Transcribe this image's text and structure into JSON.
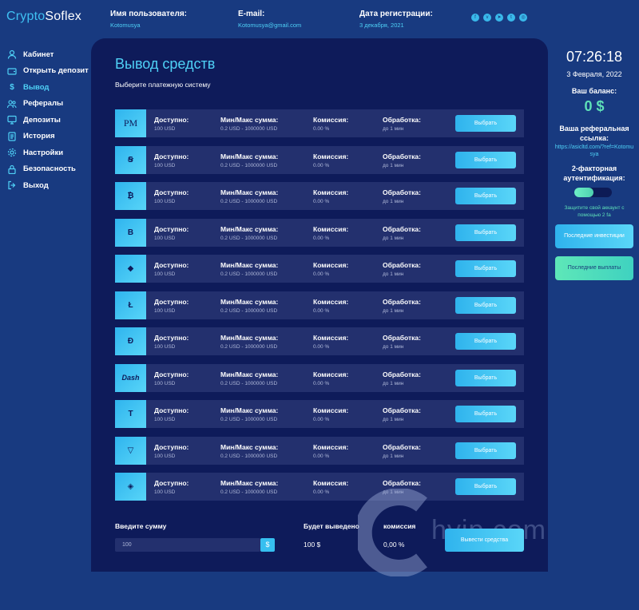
{
  "logo": {
    "part1": "Crypto",
    "part2": "Soflex"
  },
  "header": {
    "user": {
      "label": "Имя пользователя:",
      "value": "Kotomusya"
    },
    "email": {
      "label": "E-mail:",
      "value": "Kotomusya@gmail.com"
    },
    "reg": {
      "label": "Дата регистрации:",
      "value": "3 декабря, 2021"
    },
    "social_icons": [
      "facebook-icon",
      "vk-icon",
      "telegram-icon",
      "twitter-icon",
      "instagram-icon"
    ]
  },
  "nav": {
    "items": [
      {
        "label": "Кабинет",
        "icon": "user-icon"
      },
      {
        "label": "Открыть депозит",
        "icon": "wallet-icon"
      },
      {
        "label": "Вывод",
        "icon": "dollar-icon",
        "active": true
      },
      {
        "label": "Рефералы",
        "icon": "users-icon"
      },
      {
        "label": "Депозиты",
        "icon": "monitor-icon"
      },
      {
        "label": "История",
        "icon": "book-icon"
      },
      {
        "label": "Настройки",
        "icon": "gear-icon"
      },
      {
        "label": "Безопасность",
        "icon": "lock-icon"
      },
      {
        "label": "Выход",
        "icon": "logout-icon"
      }
    ]
  },
  "panel": {
    "title": "Вывод средств",
    "subtitle": "Выберите платежную систему",
    "col_labels": {
      "available": "Доступно:",
      "minmax": "Мин/Макс сумма:",
      "fee": "Комиссия:",
      "processing": "Обработка:"
    },
    "button_label": "Выбрать",
    "systems": [
      {
        "logo": "PM",
        "icon": "perfect-money-icon",
        "available": "100 USD",
        "minmax": "0.2 USD - 1000000 USD",
        "fee": "0.00 %",
        "processing": "до 1 мин"
      },
      {
        "logo": "Ꞩ",
        "icon": "payeer-icon",
        "available": "100 USD",
        "minmax": "0.2 USD - 1000000 USD",
        "fee": "0.00 %",
        "processing": "до 1 мин"
      },
      {
        "logo": "₿",
        "icon": "bitcoin-icon",
        "available": "100 USD",
        "minmax": "0.2 USD - 1000000 USD",
        "fee": "0.00 %",
        "processing": "до 1 мин"
      },
      {
        "logo": "B",
        "icon": "bitcoin-cash-icon",
        "available": "100 USD",
        "minmax": "0.2 USD - 1000000 USD",
        "fee": "0.00 %",
        "processing": "до 1 мин"
      },
      {
        "logo": "◆",
        "icon": "ethereum-icon",
        "available": "100 USD",
        "minmax": "0.2 USD - 1000000 USD",
        "fee": "0.00 %",
        "processing": "до 1 мин"
      },
      {
        "logo": "Ł",
        "icon": "litecoin-icon",
        "available": "100 USD",
        "minmax": "0.2 USD - 1000000 USD",
        "fee": "0.00 %",
        "processing": "до 1 мин"
      },
      {
        "logo": "Đ",
        "icon": "dogecoin-icon",
        "available": "100 USD",
        "minmax": "0.2 USD - 1000000 USD",
        "fee": "0.00 %",
        "processing": "до 1 мин"
      },
      {
        "logo": "Dash",
        "icon": "dash-icon",
        "available": "100 USD",
        "minmax": "0.2 USD - 1000000 USD",
        "fee": "0.00 %",
        "processing": "до 1 мин"
      },
      {
        "logo": "T",
        "icon": "tether-icon",
        "available": "100 USD",
        "minmax": "0.2 USD - 1000000 USD",
        "fee": "0.00 %",
        "processing": "до 1 мин"
      },
      {
        "logo": "▽",
        "icon": "tron-icon",
        "available": "100 USD",
        "minmax": "0.2 USD - 1000000 USD",
        "fee": "0.00 %",
        "processing": "до 1 мин"
      },
      {
        "logo": "◈",
        "icon": "binance-icon",
        "available": "100 USD",
        "minmax": "0.2 USD - 1000000 USD",
        "fee": "0.00 %",
        "processing": "до 1 мин"
      }
    ],
    "amount": {
      "label": "Введите сумму",
      "value": "100",
      "currency": "$"
    },
    "output": {
      "label": "Будет выведено",
      "value": "100 $"
    },
    "commission": {
      "label": "комиссия",
      "value": "0,00 %"
    },
    "withdraw_button": "Вывести средства"
  },
  "watermark": "hyip.com",
  "right": {
    "clock": "07:26:18",
    "date": "3 Февраля, 2022",
    "balance_label": "Ваш баланс:",
    "balance_value": "0 $",
    "ref_label": "Ваша реферальная ссылка:",
    "ref_value": "https://asicltd.com/?ref=Kotomusya",
    "tfa_label": "2-факторная аутентификация:",
    "tfa_note": "Защитите свой аккаунт с помощью 2 fa",
    "btn_investments": "Последние инвестиции",
    "btn_payouts": "Последние выплаты"
  },
  "colors": {
    "bg": "#183a80",
    "panel": "#0e1b5a",
    "row": "#23306e",
    "accent": "#4fd1f6",
    "green": "#5ee0b8"
  }
}
